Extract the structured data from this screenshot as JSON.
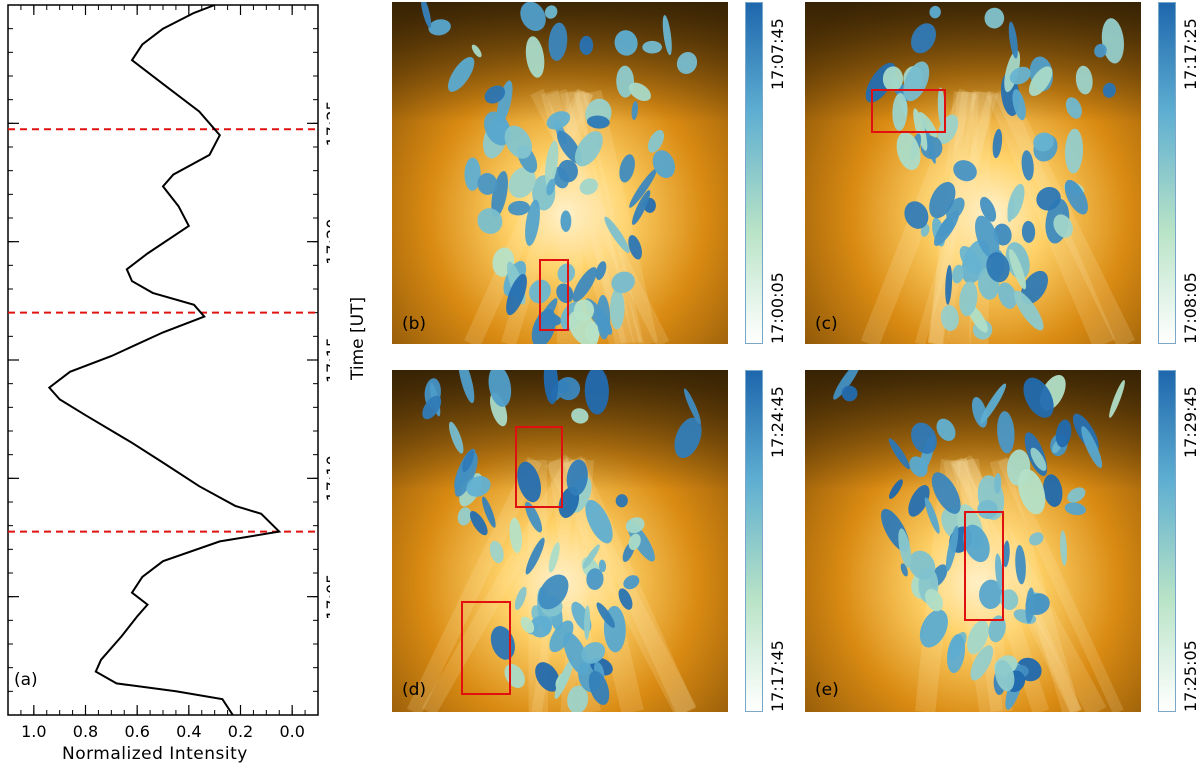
{
  "chart_data": [
    {
      "panel_label": "(a)",
      "type": "line",
      "xlabel": "Normalized Intensity",
      "ylabel": "Time [UT]",
      "x_reversed": true,
      "xlim": [
        1.1,
        -0.1
      ],
      "ylim": [
        "17:00",
        "17:30"
      ],
      "x_ticks": [
        "1.0",
        "0.8",
        "0.6",
        "0.4",
        "0.2",
        "0.0"
      ],
      "y_ticks": [
        "17:05",
        "17:10",
        "17:15",
        "17:20",
        "17:25"
      ],
      "series": [
        {
          "color": "#000000",
          "points": [
            [
              0.23,
              "17:00:00"
            ],
            [
              0.27,
              "17:00:40"
            ],
            [
              0.45,
              "17:01:00"
            ],
            [
              0.68,
              "17:01:20"
            ],
            [
              0.76,
              "17:01:50"
            ],
            [
              0.74,
              "17:02:20"
            ],
            [
              0.66,
              "17:03:20"
            ],
            [
              0.6,
              "17:04:10"
            ],
            [
              0.56,
              "17:04:40"
            ],
            [
              0.62,
              "17:05:10"
            ],
            [
              0.58,
              "17:05:50"
            ],
            [
              0.5,
              "17:06:30"
            ],
            [
              0.28,
              "17:07:20"
            ],
            [
              0.05,
              "17:07:45"
            ],
            [
              0.12,
              "17:08:30"
            ],
            [
              0.22,
              "17:08:50"
            ],
            [
              0.36,
              "17:09:40"
            ],
            [
              0.5,
              "17:10:40"
            ],
            [
              0.62,
              "17:11:30"
            ],
            [
              0.8,
              "17:12:40"
            ],
            [
              0.9,
              "17:13:20"
            ],
            [
              0.94,
              "17:13:50"
            ],
            [
              0.86,
              "17:14:30"
            ],
            [
              0.7,
              "17:15:10"
            ],
            [
              0.5,
              "17:16:10"
            ],
            [
              0.34,
              "17:16:50"
            ],
            [
              0.38,
              "17:17:20"
            ],
            [
              0.54,
              "17:17:50"
            ],
            [
              0.62,
              "17:18:20"
            ],
            [
              0.64,
              "17:18:50"
            ],
            [
              0.56,
              "17:19:30"
            ],
            [
              0.4,
              "17:20:40"
            ],
            [
              0.44,
              "17:21:30"
            ],
            [
              0.5,
              "17:22:20"
            ],
            [
              0.46,
              "17:22:50"
            ],
            [
              0.32,
              "17:23:40"
            ],
            [
              0.28,
              "17:24:30"
            ],
            [
              0.36,
              "17:25:30"
            ],
            [
              0.5,
              "17:26:40"
            ],
            [
              0.62,
              "17:27:40"
            ],
            [
              0.58,
              "17:28:20"
            ],
            [
              0.5,
              "17:29:00"
            ],
            [
              0.38,
              "17:29:40"
            ],
            [
              0.3,
              "17:30:00"
            ]
          ]
        }
      ],
      "reference_lines": [
        "17:07:45",
        "17:17:00",
        "17:24:45"
      ],
      "reference_line_color": "#e0120f"
    },
    {
      "panel_label": "(b)",
      "type": "heatmap",
      "colorbar": {
        "min_label": "17:00:05",
        "max_label": "17:07:45",
        "colors": [
          "#ffffff",
          "#b8e3c6",
          "#5eaed2",
          "#1e67ad"
        ]
      },
      "highlight_box_color": "#e01010"
    },
    {
      "panel_label": "(c)",
      "type": "heatmap",
      "colorbar": {
        "min_label": "17:08:05",
        "max_label": "17:17:25",
        "colors": [
          "#ffffff",
          "#b8e3c6",
          "#5eaed2",
          "#1e67ad"
        ]
      },
      "highlight_box_color": "#e01010"
    },
    {
      "panel_label": "(d)",
      "type": "heatmap",
      "colorbar": {
        "min_label": "17:17:45",
        "max_label": "17:24:45",
        "colors": [
          "#ffffff",
          "#b8e3c6",
          "#5eaed2",
          "#1e67ad"
        ]
      },
      "highlight_box_color": "#e01010"
    },
    {
      "panel_label": "(e)",
      "type": "heatmap",
      "colorbar": {
        "min_label": "17:25:05",
        "max_label": "17:29:45",
        "colors": [
          "#ffffff",
          "#b8e3c6",
          "#5eaed2",
          "#1e67ad"
        ]
      },
      "highlight_box_color": "#e01010"
    }
  ],
  "colors": {
    "background_dark": "#2b1c04",
    "background_orange": "#d98a12",
    "background_bright": "#fff3d0"
  }
}
